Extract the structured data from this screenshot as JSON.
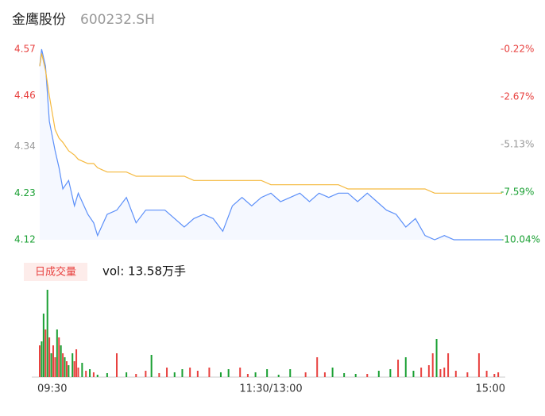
{
  "chart_data": [
    {
      "type": "line",
      "title": "金鹰股份",
      "subtitle": "600232.SH",
      "x": [
        0,
        1,
        3,
        5,
        8,
        10,
        12,
        15,
        18,
        20,
        25,
        28,
        30,
        35,
        40,
        45,
        50,
        55,
        60,
        65,
        70,
        75,
        80,
        85,
        90,
        95,
        100,
        105,
        110,
        115,
        120,
        125,
        130,
        135,
        140,
        145,
        150,
        155,
        160,
        165,
        170,
        175,
        180,
        185,
        190,
        195,
        200,
        205,
        210,
        215,
        220,
        225,
        230,
        235,
        240
      ],
      "series": [
        {
          "name": "price",
          "color": "#5b8ff9",
          "values": [
            4.53,
            4.57,
            4.53,
            4.4,
            4.33,
            4.29,
            4.24,
            4.26,
            4.2,
            4.23,
            4.18,
            4.16,
            4.13,
            4.18,
            4.19,
            4.22,
            4.16,
            4.19,
            4.19,
            4.19,
            4.17,
            4.15,
            4.17,
            4.18,
            4.17,
            4.14,
            4.2,
            4.22,
            4.2,
            4.22,
            4.23,
            4.21,
            4.22,
            4.23,
            4.21,
            4.23,
            4.22,
            4.23,
            4.23,
            4.21,
            4.23,
            4.21,
            4.19,
            4.18,
            4.15,
            4.17,
            4.13,
            4.12,
            4.13,
            4.12,
            4.12,
            4.12,
            4.12,
            4.12,
            4.12
          ]
        },
        {
          "name": "average",
          "color": "#f5b93f",
          "values": [
            4.53,
            4.56,
            4.52,
            4.46,
            4.38,
            4.36,
            4.35,
            4.33,
            4.32,
            4.31,
            4.3,
            4.3,
            4.29,
            4.28,
            4.28,
            4.28,
            4.27,
            4.27,
            4.27,
            4.27,
            4.27,
            4.27,
            4.26,
            4.26,
            4.26,
            4.26,
            4.26,
            4.26,
            4.26,
            4.26,
            4.25,
            4.25,
            4.25,
            4.25,
            4.25,
            4.25,
            4.25,
            4.25,
            4.24,
            4.24,
            4.24,
            4.24,
            4.24,
            4.24,
            4.24,
            4.24,
            4.24,
            4.23,
            4.23,
            4.23,
            4.23,
            4.23,
            4.23,
            4.23,
            4.23
          ]
        }
      ],
      "xlim": [
        0,
        240
      ],
      "ylim": [
        4.12,
        4.57
      ],
      "yticks": [
        4.57,
        4.46,
        4.34,
        4.23,
        4.12
      ],
      "ytick_colors": [
        "#e8413f",
        "#e8413f",
        "#999999",
        "#1aa033",
        "#1aa033"
      ],
      "y2lim": [
        -10.04,
        -0.22
      ],
      "y2ticks": [
        {
          "value": -0.22,
          "label": "-0.22%"
        },
        {
          "value": -2.67,
          "label": "-2.67%"
        },
        {
          "value": -5.13,
          "label": "-5.13%"
        },
        {
          "value": -7.59,
          "label": "-7.59%"
        },
        {
          "value": -10.04,
          "label": "-10.04%"
        }
      ],
      "y2tick_colors": [
        "#e8413f",
        "#e8413f",
        "#999999",
        "#1aa033",
        "#1aa033"
      ]
    },
    {
      "type": "bar",
      "label": "日成交量",
      "annotation": "vol: 13.58万手",
      "x": [
        0,
        1,
        2,
        3,
        4,
        5,
        6,
        7,
        8,
        9,
        10,
        11,
        12,
        13,
        14,
        15,
        17,
        18,
        19,
        20,
        22,
        24,
        26,
        28,
        30,
        35,
        40,
        45,
        50,
        55,
        58,
        62,
        66,
        70,
        74,
        78,
        82,
        88,
        94,
        98,
        104,
        108,
        112,
        118,
        124,
        130,
        138,
        144,
        148,
        152,
        158,
        164,
        170,
        176,
        182,
        186,
        190,
        194,
        198,
        202,
        204,
        206,
        208,
        210,
        212,
        216,
        222,
        228,
        232,
        236,
        238
      ],
      "values": [
        40,
        45,
        80,
        60,
        110,
        50,
        30,
        40,
        25,
        60,
        50,
        40,
        30,
        25,
        20,
        15,
        30,
        20,
        35,
        12,
        18,
        8,
        10,
        6,
        3,
        5,
        30,
        6,
        4,
        8,
        28,
        5,
        12,
        6,
        10,
        12,
        8,
        12,
        6,
        10,
        12,
        4,
        6,
        10,
        3,
        10,
        6,
        25,
        6,
        12,
        5,
        4,
        4,
        8,
        10,
        22,
        25,
        8,
        12,
        15,
        30,
        48,
        10,
        12,
        30,
        8,
        6,
        30,
        8,
        4,
        6
      ],
      "colors": [
        "#e8413f",
        "#1aa033",
        "#1aa033",
        "#e8413f",
        "#1aa033",
        "#e8413f",
        "#1aa033",
        "#e8413f",
        "#e8413f",
        "#1aa033",
        "#e8413f",
        "#1aa033",
        "#e8413f",
        "#1aa033",
        "#e8413f",
        "#1aa033",
        "#1aa033",
        "#e8413f",
        "#e8413f",
        "#e8413f",
        "#1aa033",
        "#e8413f",
        "#1aa033",
        "#e8413f",
        "#1aa033",
        "#1aa033",
        "#e8413f",
        "#1aa033",
        "#e8413f",
        "#e8413f",
        "#1aa033",
        "#e8413f",
        "#e8413f",
        "#1aa033",
        "#1aa033",
        "#e8413f",
        "#e8413f",
        "#e8413f",
        "#1aa033",
        "#1aa033",
        "#e8413f",
        "#e8413f",
        "#1aa033",
        "#1aa033",
        "#1aa033",
        "#1aa033",
        "#e8413f",
        "#e8413f",
        "#e8413f",
        "#1aa033",
        "#1aa033",
        "#1aa033",
        "#e8413f",
        "#1aa033",
        "#1aa033",
        "#e8413f",
        "#1aa033",
        "#1aa033",
        "#e8413f",
        "#e8413f",
        "#e8413f",
        "#1aa033",
        "#e8413f",
        "#e8413f",
        "#e8413f",
        "#e8413f",
        "#e8413f",
        "#e8413f",
        "#e8413f",
        "#e8413f",
        "#e8413f"
      ],
      "xlim": [
        0,
        240
      ],
      "ylim": [
        0,
        110
      ],
      "xticks": [
        {
          "value": 0,
          "label": "09:30"
        },
        {
          "value": 120,
          "label": "11:30/13:00"
        },
        {
          "value": 240,
          "label": "15:00"
        }
      ]
    }
  ]
}
